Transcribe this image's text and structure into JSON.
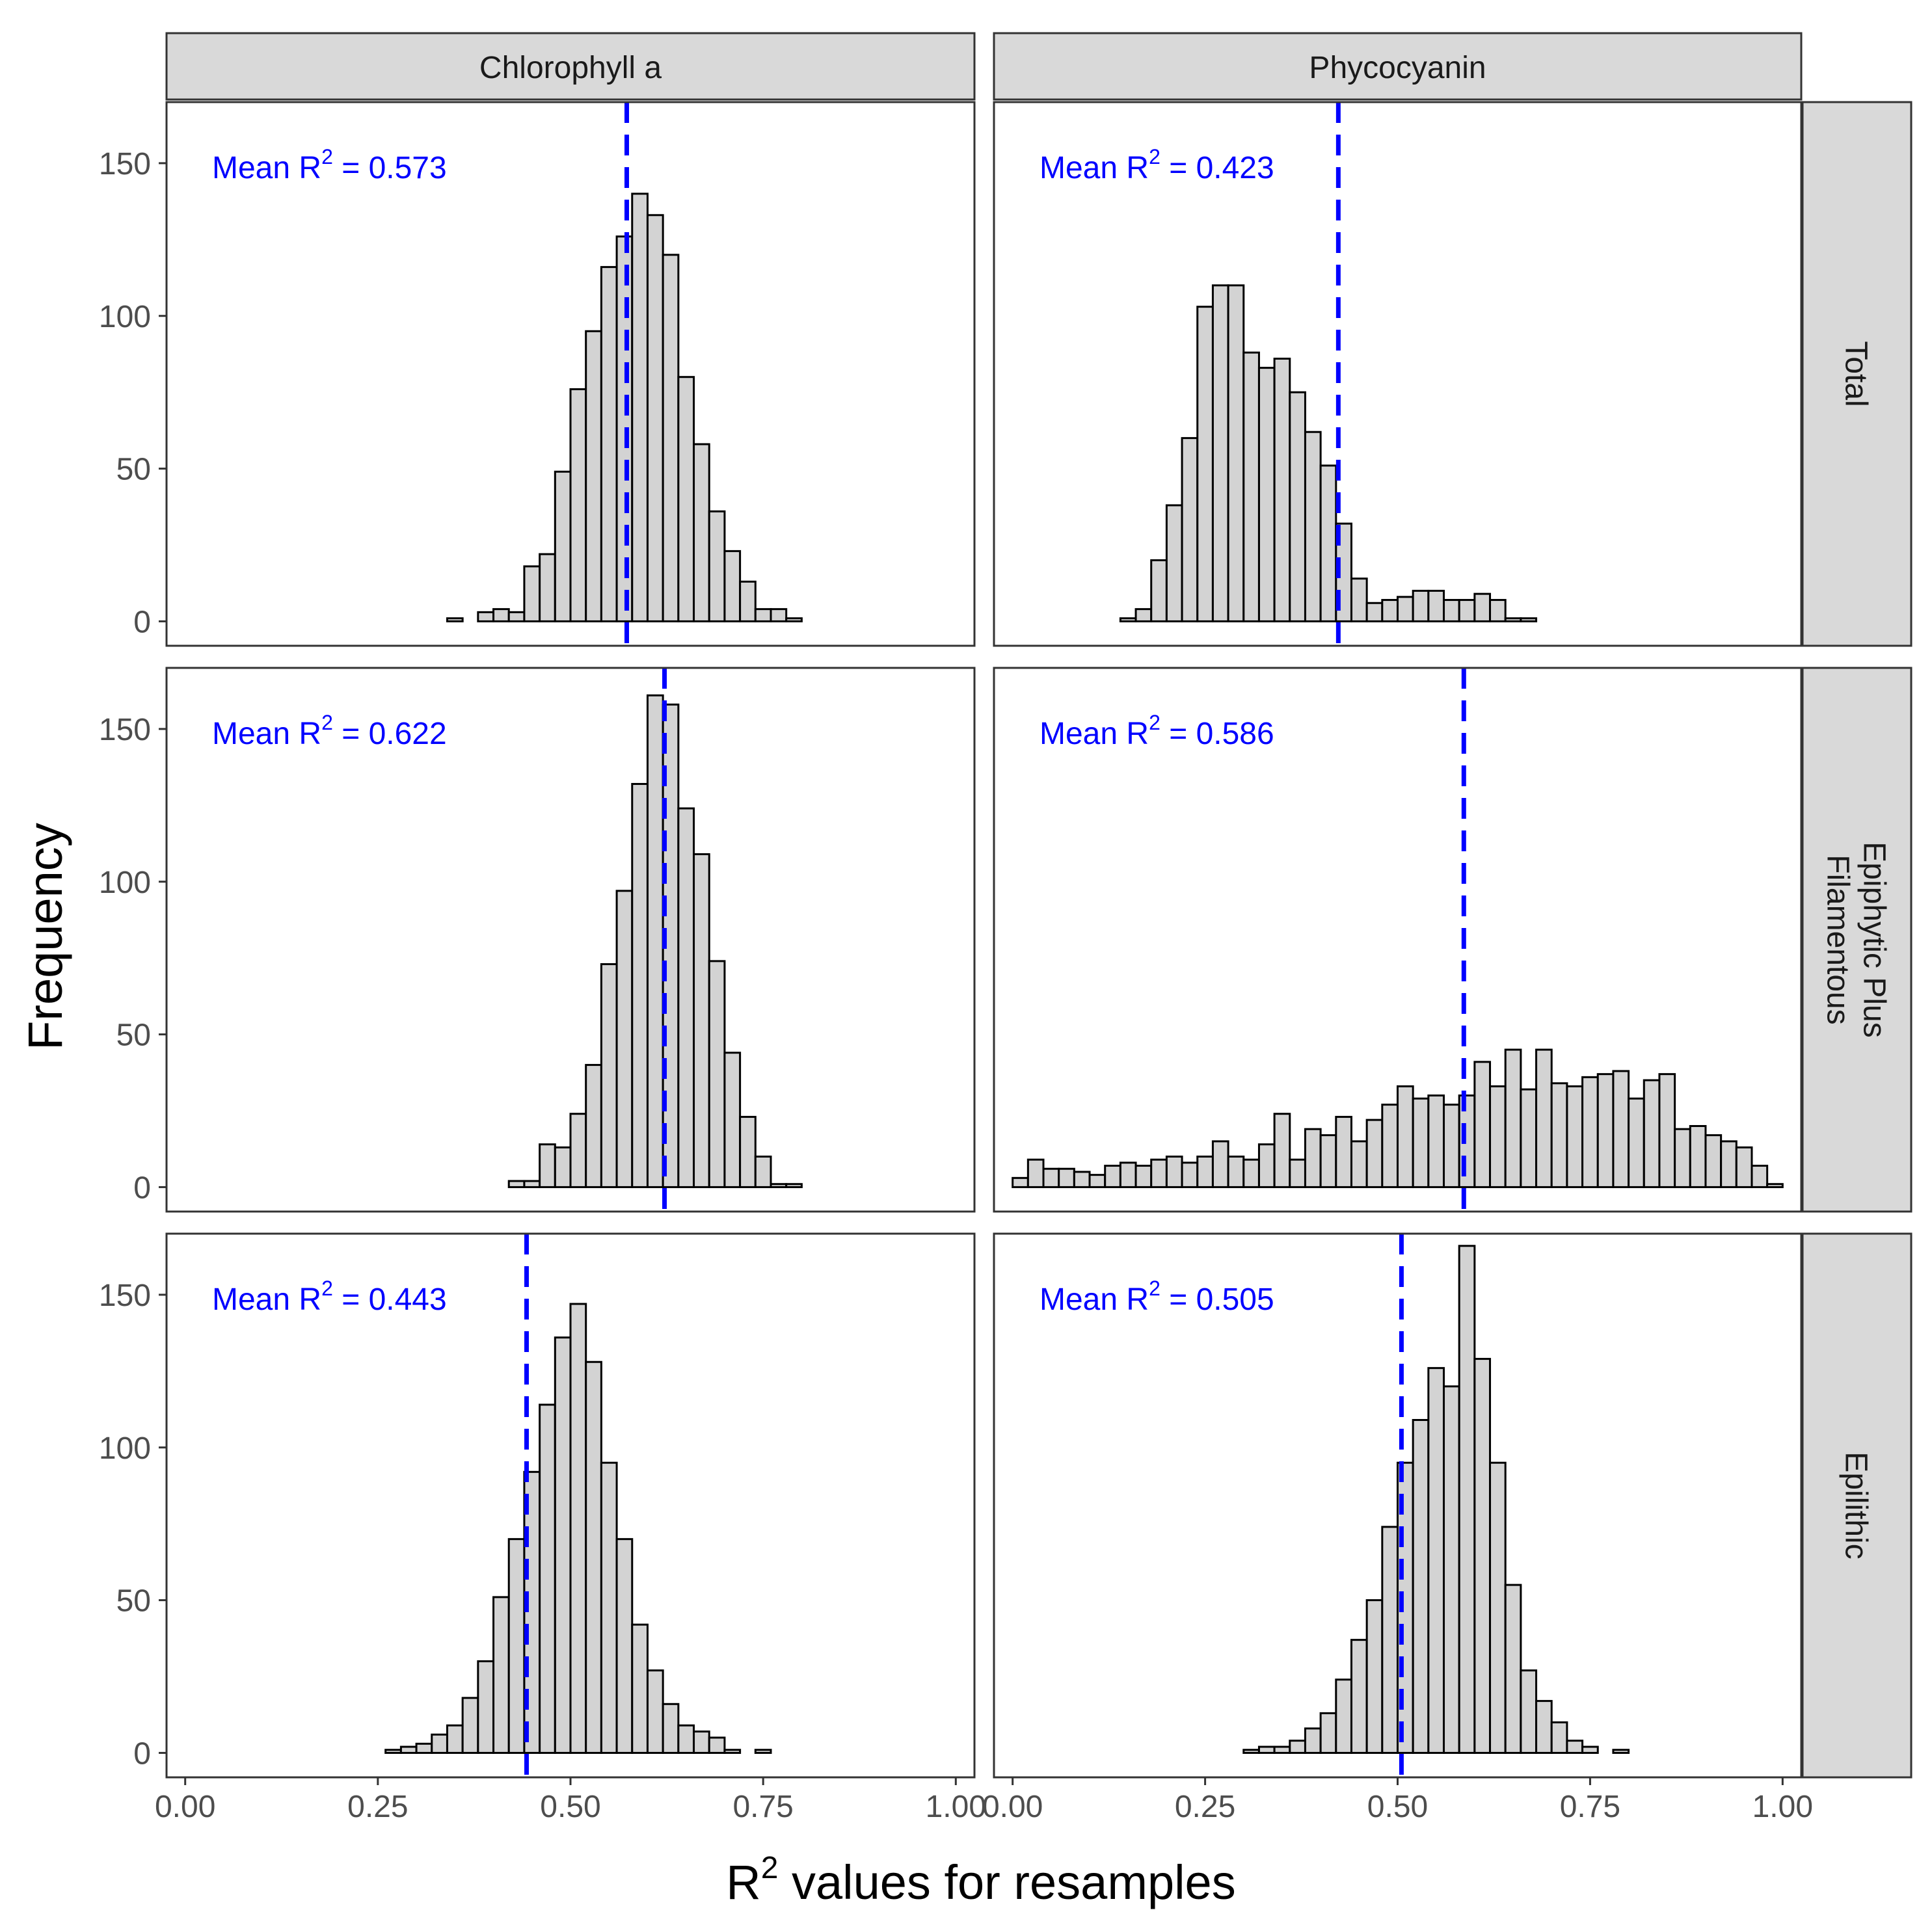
{
  "chart_data": {
    "type": "histogram-facet-grid",
    "ylabel": "Frequency",
    "xlabel_main": "R",
    "xlabel_sup": "2",
    "xlabel_rest": " values for resamples",
    "xlim": [
      0,
      1
    ],
    "ylim": [
      -8,
      170
    ],
    "x_ticks": [
      0,
      0.25,
      0.5,
      0.75,
      1
    ],
    "x_tick_labels": [
      "0.00",
      "0.25",
      "0.50",
      "0.75",
      "1.00"
    ],
    "y_ticks": [
      0,
      50,
      100,
      150
    ],
    "y_tick_labels": [
      "0",
      "50",
      "100",
      "150"
    ],
    "bin_start": 0.0,
    "bin_width": 0.02,
    "columns": [
      "Chlorophyll a",
      "Phycocyanin"
    ],
    "rows": [
      "Total",
      "Epiphytic Plus\nFilamentous",
      "Epilithic"
    ],
    "mean_label_prefix": "Mean R",
    "mean_label_sup": "2",
    "mean_label_eq": " = ",
    "colors": {
      "bar_fill": "#d3d3d3",
      "bar_stroke": "#000000",
      "mean_line": "#0000ff",
      "strip_fill": "#d9d9d9"
    },
    "panels": [
      {
        "row": 0,
        "col": 0,
        "mean": 0.573,
        "mean_text": "0.573",
        "counts": [
          0,
          0,
          0,
          0,
          0,
          0,
          0,
          0,
          0,
          0,
          0,
          0,
          0,
          0,
          0,
          0,
          0,
          1,
          0,
          3,
          4,
          3,
          18,
          22,
          49,
          76,
          95,
          116,
          126,
          140,
          133,
          120,
          80,
          58,
          36,
          23,
          13,
          4,
          4,
          1,
          0,
          0,
          0,
          0,
          0,
          0,
          0,
          0,
          0,
          0
        ]
      },
      {
        "row": 0,
        "col": 1,
        "mean": 0.423,
        "mean_text": "0.423",
        "counts": [
          0,
          0,
          0,
          0,
          0,
          0,
          0,
          1,
          4,
          20,
          38,
          60,
          103,
          110,
          110,
          88,
          83,
          86,
          75,
          62,
          51,
          32,
          14,
          6,
          7,
          8,
          10,
          10,
          7,
          7,
          9,
          7,
          1,
          1,
          0,
          0,
          0,
          0,
          0,
          0,
          0,
          0,
          0,
          0,
          0,
          0,
          0,
          0,
          0,
          0
        ]
      },
      {
        "row": 1,
        "col": 0,
        "mean": 0.622,
        "mean_text": "0.622",
        "counts": [
          0,
          0,
          0,
          0,
          0,
          0,
          0,
          0,
          0,
          0,
          0,
          0,
          0,
          0,
          0,
          0,
          0,
          0,
          0,
          0,
          0,
          2,
          2,
          14,
          13,
          24,
          40,
          73,
          97,
          132,
          161,
          158,
          124,
          109,
          74,
          44,
          23,
          10,
          1,
          1,
          0,
          0,
          0,
          0,
          0,
          0,
          0,
          0,
          0,
          0
        ]
      },
      {
        "row": 1,
        "col": 1,
        "mean": 0.586,
        "mean_text": "0.586",
        "counts": [
          3,
          9,
          6,
          6,
          5,
          4,
          7,
          8,
          7,
          9,
          10,
          8,
          10,
          15,
          10,
          9,
          14,
          24,
          9,
          19,
          17,
          23,
          15,
          22,
          27,
          33,
          29,
          30,
          27,
          30,
          41,
          33,
          45,
          32,
          45,
          34,
          33,
          36,
          37,
          38,
          29,
          35,
          37,
          19,
          20,
          17,
          15,
          13,
          7,
          1
        ]
      },
      {
        "row": 2,
        "col": 0,
        "mean": 0.443,
        "mean_text": "0.443",
        "counts": [
          0,
          0,
          0,
          0,
          0,
          0,
          0,
          0,
          0,
          0,
          0,
          0,
          0,
          1,
          2,
          3,
          6,
          9,
          18,
          30,
          51,
          70,
          92,
          114,
          136,
          147,
          128,
          95,
          70,
          42,
          27,
          16,
          9,
          7,
          5,
          1,
          0,
          1,
          0,
          0,
          0,
          0,
          0,
          0,
          0,
          0,
          0,
          0,
          0,
          0
        ]
      },
      {
        "row": 2,
        "col": 1,
        "mean": 0.505,
        "mean_text": "0.505",
        "counts": [
          0,
          0,
          0,
          0,
          0,
          0,
          0,
          0,
          0,
          0,
          0,
          0,
          0,
          0,
          0,
          1,
          2,
          2,
          4,
          8,
          13,
          24,
          37,
          50,
          74,
          95,
          109,
          126,
          120,
          166,
          129,
          95,
          55,
          27,
          17,
          10,
          4,
          2,
          0,
          1,
          0,
          0,
          0,
          0,
          0,
          0,
          0,
          0,
          0,
          0
        ]
      }
    ]
  }
}
